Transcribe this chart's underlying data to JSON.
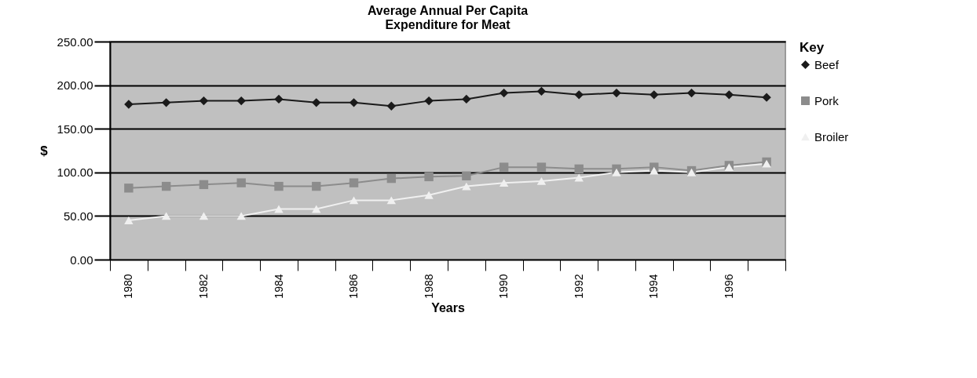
{
  "chart_data": {
    "type": "line",
    "title": "Average Annual Per Capita\nExpenditure for Meat",
    "xlabel": "Years",
    "ylabel": "$",
    "legend_title": "Key",
    "categories": [
      "1980",
      null,
      "1982",
      null,
      "1984",
      null,
      "1986",
      null,
      "1988",
      null,
      "1990",
      null,
      "1992",
      null,
      "1994",
      null,
      "1996",
      null
    ],
    "series": [
      {
        "name": "Beef",
        "color": "#1a1a1a",
        "marker": "diamond",
        "values": [
          178,
          180,
          182,
          182,
          184,
          180,
          180,
          176,
          182,
          184,
          191,
          193,
          189,
          191,
          189,
          191,
          189,
          186
        ]
      },
      {
        "name": "Pork",
        "color": "#8c8c8c",
        "marker": "square",
        "values": [
          82,
          84,
          86,
          88,
          84,
          84,
          88,
          93,
          95,
          96,
          106,
          106,
          104,
          104,
          106,
          102,
          108,
          112
        ]
      },
      {
        "name": "Broiler",
        "color": "#f0f0f0",
        "marker": "triangle",
        "values": [
          45,
          50,
          50,
          50,
          58,
          58,
          68,
          68,
          74,
          84,
          88,
          90,
          94,
          100,
          102,
          100,
          106,
          110
        ]
      }
    ],
    "ylim": [
      0,
      250
    ],
    "yticks": [
      {
        "value": 0,
        "label": "0.00"
      },
      {
        "value": 50,
        "label": "50.00"
      },
      {
        "value": 100,
        "label": "100.00"
      },
      {
        "value": 150,
        "label": "150.00"
      },
      {
        "value": 200,
        "label": "200.00"
      },
      {
        "value": 250,
        "label": "250.00"
      }
    ],
    "grid": "y",
    "legend": "right"
  }
}
